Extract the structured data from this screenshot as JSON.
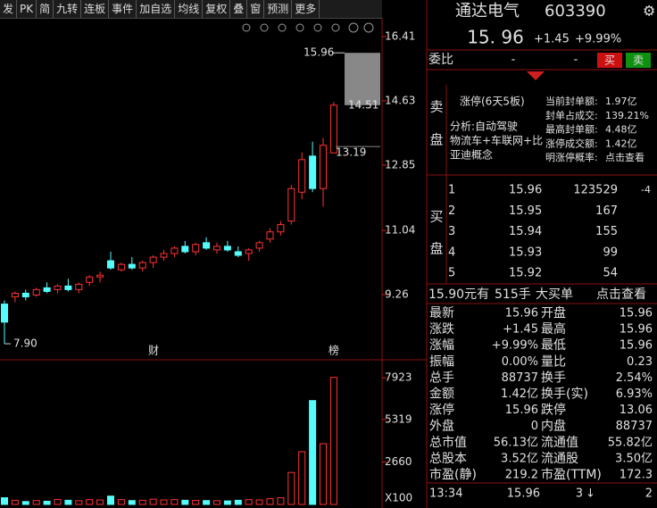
{
  "toolbar": [
    "发",
    "PK",
    "简",
    "九转",
    "连板",
    "事件",
    "加自选",
    "均线",
    "复权",
    "叠",
    "窗",
    "预测",
    "更多"
  ],
  "chart_data": {
    "type": "candlestick",
    "open": [
      9.0,
      9.2,
      9.3,
      9.25,
      9.45,
      9.4,
      9.5,
      9.4,
      9.6,
      9.75,
      10.2,
      9.95,
      10.1,
      10.0,
      10.15,
      10.3,
      10.4,
      10.6,
      10.45,
      10.7,
      10.5,
      10.6,
      10.45,
      10.4,
      10.55,
      10.8,
      11.0,
      11.3,
      12.1,
      13.1,
      12.2,
      13.19
    ],
    "high": [
      9.1,
      9.35,
      9.4,
      9.45,
      9.6,
      9.55,
      9.7,
      9.6,
      9.8,
      9.9,
      10.45,
      10.15,
      10.3,
      10.2,
      10.35,
      10.5,
      10.6,
      10.75,
      10.7,
      10.85,
      10.7,
      10.75,
      10.6,
      10.55,
      10.75,
      11.1,
      11.3,
      12.3,
      13.2,
      13.5,
      13.6,
      14.6
    ],
    "low": [
      7.9,
      9.05,
      9.1,
      9.2,
      9.3,
      9.3,
      9.35,
      9.3,
      9.5,
      9.6,
      9.95,
      9.9,
      9.95,
      9.9,
      10.0,
      10.2,
      10.3,
      10.4,
      10.35,
      10.5,
      10.4,
      10.45,
      10.3,
      10.2,
      10.45,
      10.7,
      10.9,
      11.2,
      11.9,
      12.1,
      11.7,
      13.19
    ],
    "close": [
      8.5,
      9.3,
      9.2,
      9.4,
      9.35,
      9.5,
      9.4,
      9.55,
      9.75,
      9.8,
      10.0,
      10.1,
      10.0,
      10.15,
      10.3,
      10.4,
      10.55,
      10.45,
      10.65,
      10.55,
      10.6,
      10.5,
      10.35,
      10.5,
      10.7,
      11.0,
      11.2,
      12.2,
      13.0,
      12.2,
      13.4,
      14.51
    ],
    "ylim": [
      7.53,
      16.88
    ],
    "yticks": [
      16.41,
      14.63,
      12.85,
      11.04,
      9.26
    ],
    "up_color": "#ff3232",
    "down_color": "#54fcfc",
    "annotations": [
      15.96,
      14.51,
      13.19,
      {
        "value": 7.9,
        "label": "7.90"
      }
    ],
    "events": [
      "财",
      "榜"
    ],
    "volume": {
      "values": [
        420,
        260,
        180,
        240,
        200,
        310,
        260,
        230,
        300,
        280,
        520,
        300,
        240,
        260,
        330,
        280,
        300,
        260,
        250,
        240,
        230,
        220,
        260,
        300,
        280,
        360,
        420,
        2000,
        3300,
        6500,
        3800,
        7950
      ],
      "ylim": [
        0,
        8940
      ],
      "yticks": [
        7923,
        5319,
        2660
      ],
      "unit": "X100"
    }
  },
  "quote_header": {
    "name": "通达电气",
    "code": "603390",
    "price": "15. 96",
    "change": "+1.45",
    "change_pct": "+9.99%"
  },
  "weibi": {
    "label": "委比",
    "left": "-",
    "right": "-",
    "buy": "买",
    "sell": "卖"
  },
  "sell_panel": {
    "title": [
      "卖",
      "盘"
    ],
    "tag": "涨停(6天5板)",
    "analysis": [
      "分析:自动驾驶",
      "物流车+车联网+比",
      "亚迪概念"
    ],
    "stats": [
      [
        "当前封单额:",
        "1.97亿"
      ],
      [
        "封单占成交:",
        "139.21%"
      ],
      [
        "最高封单额:",
        "4.48亿"
      ],
      [
        "涨停成交额:",
        "1.42亿"
      ],
      [
        "明涨停概率:",
        "点击查看"
      ]
    ]
  },
  "buy_panel": {
    "title": [
      "买",
      "盘"
    ],
    "rows": [
      [
        "1",
        "15.96",
        "123529",
        "-4"
      ],
      [
        "2",
        "15.95",
        "167"
      ],
      [
        "3",
        "15.94",
        "155"
      ],
      [
        "4",
        "15.93",
        "99"
      ],
      [
        "5",
        "15.92",
        "54"
      ]
    ]
  },
  "trade": [
    "15.90元有",
    "515手",
    "大买单",
    "点击查看"
  ],
  "quotes": [
    [
      "最新",
      "15.96",
      "开盘",
      "15.96"
    ],
    [
      "涨跌",
      "+1.45",
      "最高",
      "15.96"
    ],
    [
      "涨幅",
      "+9.99%",
      "最低",
      "15.96"
    ],
    [
      "振幅",
      "0.00%",
      "量比",
      "0.23"
    ],
    [
      "总手",
      "88737",
      "换手",
      "2.54%"
    ],
    [
      "金额",
      "1.42亿",
      "换手(实)",
      "6.93%"
    ],
    [
      "涨停",
      "15.96",
      "跌停",
      "13.06"
    ],
    [
      "外盘",
      "0",
      "内盘",
      "88737"
    ],
    [
      "总市值",
      "56.13亿",
      "流通值",
      "55.82亿"
    ],
    [
      "总股本",
      "3.52亿",
      "流通股",
      "3.50亿"
    ],
    [
      "市盈(静)",
      "219.2",
      "市盈(TTM)",
      "172.3"
    ]
  ],
  "footer": [
    "13:34",
    "15.96",
    "3",
    "2"
  ]
}
